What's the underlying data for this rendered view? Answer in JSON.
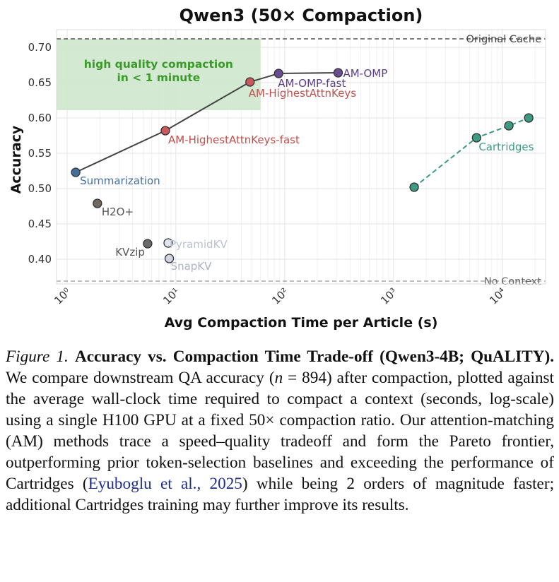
{
  "chart_data": {
    "type": "scatter",
    "title": "Qwen3 (50× Compaction)",
    "xlabel": "Avg Compaction Time per Article (s)",
    "ylabel": "Accuracy",
    "x_scale": "log",
    "xlim": [
      0.8,
      25000
    ],
    "ylim": [
      0.365,
      0.725
    ],
    "grid": true,
    "x_ticks": [
      1,
      10,
      100,
      1000,
      10000
    ],
    "x_tick_labels": [
      "10⁰",
      "10¹",
      "10²",
      "10³",
      "10⁴"
    ],
    "y_ticks": [
      0.4,
      0.45,
      0.5,
      0.55,
      0.6,
      0.65,
      0.7
    ],
    "y_tick_labels": [
      "0.40",
      "0.45",
      "0.50",
      "0.55",
      "0.60",
      "0.65",
      "0.70"
    ],
    "reference_lines": [
      {
        "label": "Original Cache",
        "y": 0.712,
        "color": "#333333"
      },
      {
        "label": "No Context",
        "y": 0.369,
        "color": "#999999"
      }
    ],
    "highlight_region": {
      "label_line1": "high quality compaction",
      "label_line2": "in < 1 minute",
      "x_range": [
        0.8,
        60
      ],
      "y_range": [
        0.611,
        0.712
      ],
      "fill": "#cfe7cc",
      "text_color": "#3a9a2a"
    },
    "frontier_line": {
      "color": "#444444",
      "points": [
        [
          1.2,
          0.523
        ],
        [
          8,
          0.582
        ],
        [
          48,
          0.651
        ],
        [
          88,
          0.663
        ],
        [
          310,
          0.664
        ]
      ]
    },
    "cartridges_line": {
      "color": "#3e9a82",
      "points": [
        [
          1550,
          0.502
        ],
        [
          5800,
          0.572
        ],
        [
          11500,
          0.589
        ],
        [
          17500,
          0.6
        ]
      ]
    },
    "points": [
      {
        "label": "Summarization",
        "x": 1.2,
        "y": 0.523,
        "color": "#456e9a",
        "label_color": "#456e9a"
      },
      {
        "label": "H2O+",
        "x": 1.9,
        "y": 0.479,
        "color": "#6e6a60",
        "label_color": "#555555"
      },
      {
        "label": "KVzip",
        "x": 5.5,
        "y": 0.422,
        "color": "#6a6a6a",
        "label_color": "#555555"
      },
      {
        "label": "PyramidKV",
        "x": 8.5,
        "y": 0.423,
        "color": "#e2e6ef",
        "label_color": "#b9c1d2"
      },
      {
        "label": "SnapKV",
        "x": 8.7,
        "y": 0.401,
        "color": "#cfd4df",
        "label_color": "#aab2c2"
      },
      {
        "label": "AM-HighestAttnKeys-fast",
        "x": 8,
        "y": 0.582,
        "color": "#c9595c",
        "label_color": "#c0504d"
      },
      {
        "label": "AM-HighestAttnKeys",
        "x": 48,
        "y": 0.651,
        "color": "#c9595c",
        "label_color": "#c0504d"
      },
      {
        "label": "AM-OMP-fast",
        "x": 88,
        "y": 0.663,
        "color": "#6a4c93",
        "label_color": "#5b3e86"
      },
      {
        "label": "AM-OMP",
        "x": 310,
        "y": 0.664,
        "color": "#6a4c93",
        "label_color": "#5b3e86"
      },
      {
        "label": "",
        "x": 1550,
        "y": 0.502,
        "color": "#3e9a82",
        "label_color": "#3e9a82"
      },
      {
        "label": "Cartridges",
        "x": 5800,
        "y": 0.572,
        "color": "#3e9a82",
        "label_color": "#3e9a82"
      },
      {
        "label": "",
        "x": 11500,
        "y": 0.589,
        "color": "#3e9a82",
        "label_color": "#3e9a82"
      },
      {
        "label": "",
        "x": 17500,
        "y": 0.6,
        "color": "#3e9a82",
        "label_color": "#3e9a82"
      }
    ]
  },
  "caption": {
    "figure_label": "Figure 1.",
    "bold_title": "Accuracy vs. Compaction Time Trade-off (Qwen3-4B; QuALITY).",
    "text_before_n": " We compare downstream QA accuracy (",
    "n_expr": "n",
    "n_value": " = 894",
    "text_after_n": ") after compaction, plotted against the average wall-clock time required to compact a context (seconds, log-scale) using a single H100 GPU at a fixed 50× compaction ratio. Our attention-matching (AM) methods trace a speed–quality tradeoff and form the Pareto frontier, outperforming prior token-selection baselines and exceeding the performance of Cartridges (",
    "citation": "Eyuboglu et al., 2025",
    "text_end": ") while being 2 orders of magnitude faster; additional Cartridges training may further improve its results."
  }
}
